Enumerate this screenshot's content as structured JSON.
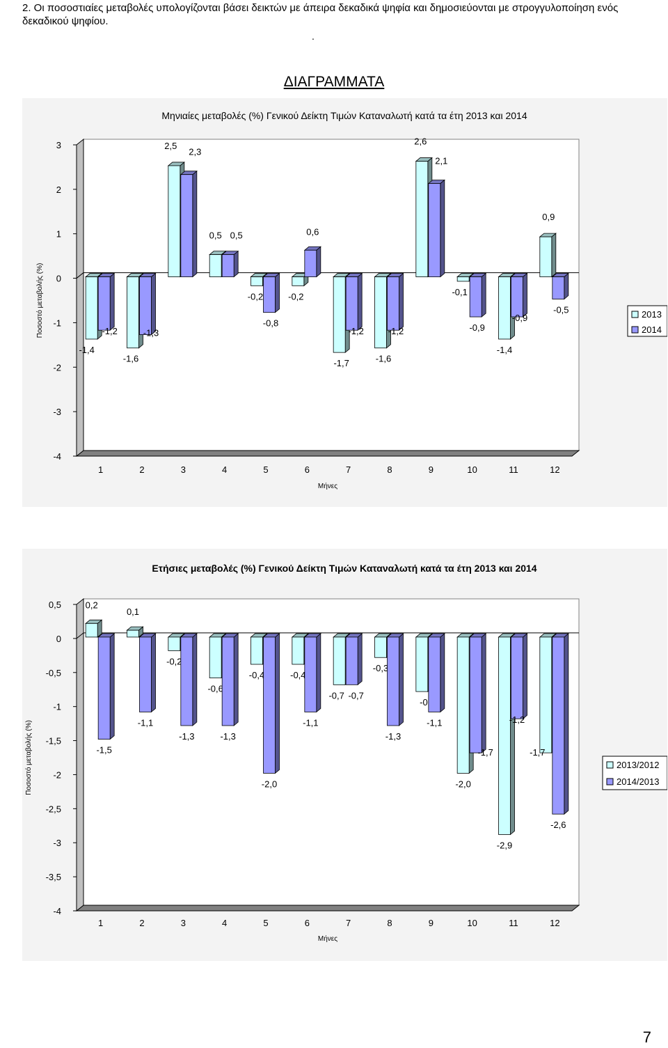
{
  "note": "2. Οι ποσοστιαίες μεταβολές υπολογίζονται βάσει δεικτών με άπειρα δεκαδικά ψηφία και δημοσιεύονται με στρογγυλοποίηση ενός δεκαδικού ψηφίου.",
  "dot": ".",
  "heading": "ΔΙΑΓΡΑΜΜΑΤΑ",
  "page_number": "7",
  "colors": {
    "series_a": "#ccffff",
    "series_b": "#9999ff",
    "floor": "#808080",
    "panel": "#f3f3f3"
  },
  "chart_data": [
    {
      "type": "bar",
      "title": "Μηνιαίες μεταβολές (%) Γενικού Δείκτη Τιμών Καταναλωτή κατά τα έτη 2013 και 2014",
      "xlabel": "Μήνες",
      "ylabel": "Ποσοστό μεταβολής (%)",
      "ylim": [
        -4,
        3
      ],
      "yticks": [
        3,
        2,
        1,
        0,
        -1,
        -2,
        -3,
        -4
      ],
      "categories": [
        "1",
        "2",
        "3",
        "4",
        "5",
        "6",
        "7",
        "8",
        "9",
        "10",
        "11",
        "12"
      ],
      "legend_position": "right",
      "series": [
        {
          "name": "2013",
          "values": [
            -1.4,
            -1.6,
            2.5,
            0.5,
            -0.2,
            -0.2,
            -1.7,
            -1.6,
            2.6,
            -0.1,
            -1.4,
            0.9
          ],
          "labels": [
            "-1,4",
            "-1,6",
            "2,5",
            "0,5",
            "-0,2",
            "-0,2",
            "-1,7",
            "-1,6",
            "2,6",
            "-0,1",
            "-1,4",
            "0,9"
          ]
        },
        {
          "name": "2014",
          "values": [
            -1.2,
            -1.3,
            2.3,
            0.5,
            -0.8,
            0.6,
            -1.2,
            -1.2,
            2.1,
            -0.9,
            -0.9,
            -0.5
          ],
          "labels": [
            "-1,2",
            "-1,3",
            "2,3",
            "0,5",
            "-0,8",
            "0,6",
            "-1,2",
            "-1,2",
            "2,1",
            "-0,9",
            "-0,9",
            "-0,5"
          ]
        }
      ]
    },
    {
      "type": "bar",
      "title": "Ετήσιες μεταβολές (%) Γενικού Δείκτη Τιμών Καταναλωτή κατά τα έτη 2013 και 2014",
      "xlabel": "Μήνες",
      "ylabel": "Ποσοστό μεταβολής (%)",
      "ylim": [
        -4,
        0.5
      ],
      "yticks": [
        0.5,
        0,
        -0.5,
        -1,
        -1.5,
        -2,
        -2.5,
        -3,
        -3.5,
        -4
      ],
      "categories": [
        "1",
        "2",
        "3",
        "4",
        "5",
        "6",
        "7",
        "8",
        "9",
        "10",
        "11",
        "12"
      ],
      "legend_position": "right",
      "series": [
        {
          "name": "2013/2012",
          "values": [
            0.2,
            0.1,
            -0.2,
            -0.6,
            -0.4,
            -0.4,
            -0.7,
            -0.3,
            -0.8,
            -2.0,
            -2.9,
            -1.7
          ],
          "labels": [
            "0,2",
            "0,1",
            "-0,2",
            "-0,6",
            "-0,4",
            "-0,4",
            "-0,7",
            "-0,3",
            "-0,8",
            "-2,0",
            "-2,9",
            "-1,7"
          ]
        },
        {
          "name": "2014/2013",
          "values": [
            -1.5,
            -1.1,
            -1.3,
            -1.3,
            -2.0,
            -1.1,
            -0.7,
            -1.3,
            -1.1,
            -1.7,
            -1.2,
            -2.6
          ],
          "labels": [
            "-1,5",
            "-1,1",
            "-1,3",
            "-1,3",
            "-2,0",
            "-1,1",
            "-0,7",
            "-1,3",
            "-1,1",
            "-1,7",
            "-1,2",
            "-2,6"
          ]
        }
      ]
    }
  ]
}
